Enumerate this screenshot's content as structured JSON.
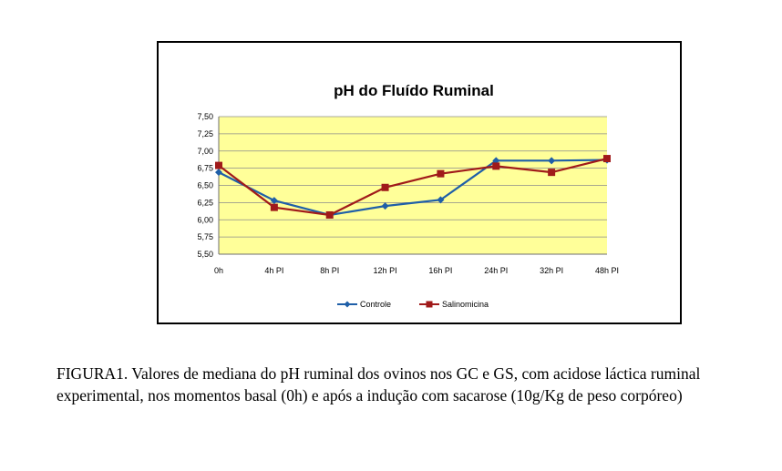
{
  "chart_data": {
    "type": "line",
    "title": "pH do Fluído Ruminal",
    "categories": [
      "0h",
      "4h PI",
      "8h PI",
      "12h PI",
      "16h PI",
      "24h PI",
      "32h PI",
      "48h PI"
    ],
    "ylim": [
      5.5,
      7.5
    ],
    "yticks": [
      "5,50",
      "5,75",
      "6,00",
      "6,25",
      "6,50",
      "6,75",
      "7,00",
      "7,25",
      "7,50"
    ],
    "grid": true,
    "plot_background": "#ffff99",
    "legend_position": "bottom",
    "series": [
      {
        "name": "Controle",
        "color": "#1f5fa8",
        "marker": "diamond",
        "values": [
          6.69,
          6.28,
          6.07,
          6.2,
          6.29,
          6.86,
          6.86,
          6.87
        ]
      },
      {
        "name": "Salinomicina",
        "color": "#a01a1a",
        "marker": "square",
        "values": [
          6.79,
          6.18,
          6.07,
          6.47,
          6.67,
          6.78,
          6.69,
          6.89
        ]
      }
    ]
  },
  "caption": "FIGURA1. Valores de mediana do pH ruminal dos ovinos nos GC e GS, com acidose láctica ruminal experimental, nos momentos basal (0h) e após a indução com sacarose (10g/Kg de peso corpóreo)"
}
